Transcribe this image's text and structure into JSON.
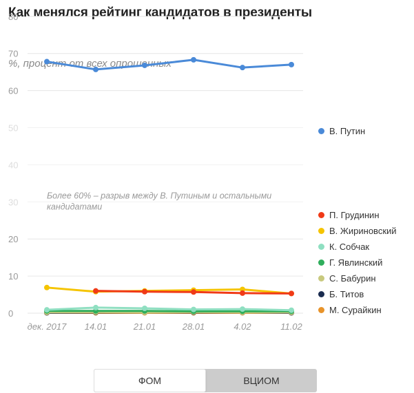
{
  "header": {
    "title": "Как менялся рейтинг кандидатов в президенты",
    "subtitle": "%, процент от всех опрошенных"
  },
  "toggle": {
    "options": [
      "ФОМ",
      "ВЦИОМ"
    ],
    "selected": "ФОМ"
  },
  "chart_data": {
    "type": "line",
    "title": "Как менялся рейтинг кандидатов в президенты",
    "ylabel": "%, процент от всех опрошенных",
    "xlabel": "",
    "ylim": [
      0,
      80
    ],
    "yticks_major": [
      0,
      10,
      20,
      60,
      70,
      80
    ],
    "yticks_faded": [
      30,
      40,
      50
    ],
    "categories": [
      "дек. 2017",
      "14.01",
      "21.01",
      "28.01",
      "4.02",
      "11.02"
    ],
    "annotation": {
      "line1": "Более 60% – разрыв между В. Путиным и остальными",
      "line2": "кандидатами",
      "y_value": 30.5
    },
    "series": [
      {
        "name": "В. Путин",
        "color": "#4a8ad8",
        "values": [
          67.8,
          65.7,
          66.8,
          68.3,
          66.2,
          67.0
        ]
      },
      {
        "name": "П. Грудинин",
        "color": "#f03a17",
        "values": [
          null,
          6.0,
          5.8,
          5.7,
          5.4,
          5.3
        ]
      },
      {
        "name": "В. Жириновский",
        "color": "#f5c400",
        "values": [
          6.9,
          5.8,
          6.0,
          6.2,
          6.4,
          5.3
        ]
      },
      {
        "name": "К. Собчак",
        "color": "#8fdfc1",
        "values": [
          0.9,
          1.5,
          1.3,
          1.0,
          1.1,
          0.8
        ]
      },
      {
        "name": "Г. Явлинский",
        "color": "#2fae5c",
        "values": [
          0.6,
          0.6,
          0.6,
          0.5,
          0.5,
          0.5
        ]
      },
      {
        "name": "С. Бабурин",
        "color": "#c8c97e",
        "values": [
          0.2,
          0.3,
          0.2,
          0.3,
          0.2,
          0.2
        ]
      },
      {
        "name": "Б. Титов",
        "color": "#1a2b4f",
        "values": [
          0.1,
          0.2,
          0.2,
          0.2,
          0.2,
          0.1
        ]
      },
      {
        "name": "М. Сурайкин",
        "color": "#e8932a",
        "values": [
          0.1,
          0.1,
          0.1,
          0.1,
          0.1,
          0.1
        ]
      }
    ]
  }
}
